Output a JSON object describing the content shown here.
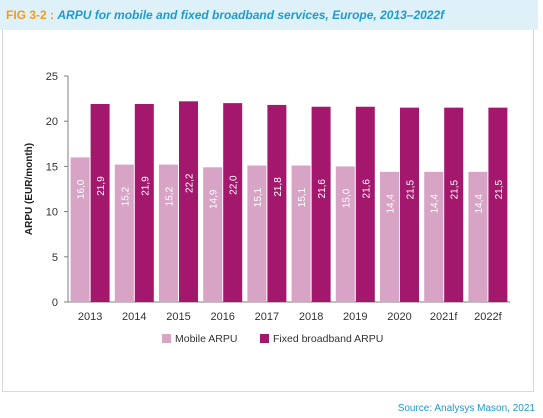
{
  "header": {
    "fig_label": "FIG 3-2",
    "separator": " : ",
    "title": "ARPU for mobile and fixed broadband services, Europe, 2013–2022f"
  },
  "source": "Source: Analysys Mason, 2021",
  "colors": {
    "mobile": "#d7a4c6",
    "fixed": "#a3176d",
    "axis": "#7f7f7f",
    "grid": "#d9d9d9"
  },
  "chart_data": {
    "type": "bar",
    "ylabel": "ARPU (EUR/month)",
    "xlabel": "",
    "ylim": [
      0,
      25
    ],
    "yticks": [
      0,
      5,
      10,
      15,
      20,
      25
    ],
    "grid": false,
    "legend_position": "bottom",
    "categories": [
      "2013",
      "2014",
      "2015",
      "2016",
      "2017",
      "2018",
      "2019",
      "2020",
      "2021f",
      "2022f"
    ],
    "series": [
      {
        "name": "Mobile ARPU",
        "values": [
          16.0,
          15.2,
          15.2,
          14.9,
          15.1,
          15.1,
          15.0,
          14.4,
          14.4,
          14.4
        ],
        "labels": [
          "16,0",
          "15,2",
          "15,2",
          "14,9",
          "15,1",
          "15,1",
          "15,0",
          "14,4",
          "14,4",
          "14,4"
        ]
      },
      {
        "name": "Fixed broadband ARPU",
        "values": [
          21.9,
          21.9,
          22.2,
          22.0,
          21.8,
          21.6,
          21.6,
          21.5,
          21.5,
          21.5
        ],
        "labels": [
          "21,9",
          "21,9",
          "22,2",
          "22,0",
          "21,8",
          "21,6",
          "21,6",
          "21,5",
          "21,5",
          "21,5"
        ]
      }
    ]
  }
}
